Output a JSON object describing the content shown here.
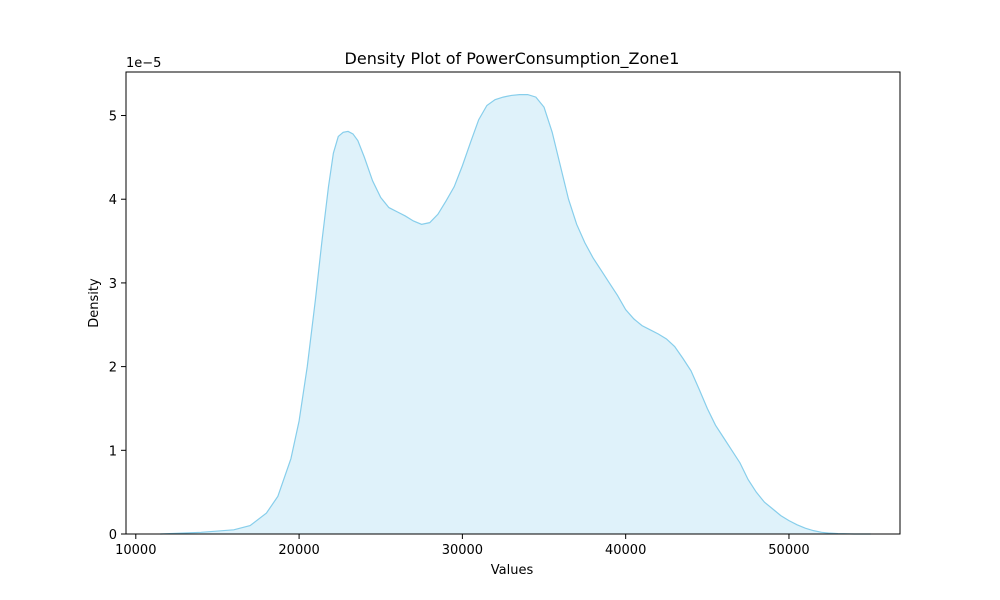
{
  "chart_data": {
    "type": "area",
    "title": "Density Plot of PowerConsumption_Zone1",
    "xlabel": "Values",
    "ylabel": "Density",
    "y_offset_label": "1e−5",
    "y_scale": 1e-05,
    "xlim": [
      9400,
      56800
    ],
    "ylim": [
      0,
      5.52
    ],
    "x_ticks": [
      10000,
      20000,
      30000,
      40000,
      50000
    ],
    "x_tick_labels": [
      "10000",
      "20000",
      "30000",
      "40000",
      "50000"
    ],
    "y_ticks": [
      0,
      1,
      2,
      3,
      4,
      5
    ],
    "y_tick_labels": [
      "0",
      "1",
      "2",
      "3",
      "4",
      "5"
    ],
    "grid": false,
    "legend": "none",
    "series": [
      {
        "color": "#87ceeb",
        "fill_color": "#87ceeb",
        "fill_opacity": 0.27,
        "x": [
          11500,
          14000,
          16000,
          17000,
          18000,
          18700,
          19500,
          20000,
          20500,
          21000,
          21400,
          21800,
          22100,
          22400,
          22700,
          23000,
          23300,
          23600,
          24000,
          24500,
          25000,
          25500,
          26000,
          26500,
          27000,
          27500,
          28000,
          28500,
          29000,
          29500,
          30000,
          30500,
          31000,
          31500,
          32000,
          32500,
          33000,
          33500,
          34000,
          34500,
          35000,
          35500,
          36000,
          36500,
          37000,
          37500,
          38000,
          38500,
          39000,
          39500,
          40000,
          40500,
          41000,
          41500,
          42000,
          42500,
          43000,
          43500,
          44000,
          44500,
          45000,
          45500,
          46000,
          46500,
          47000,
          47500,
          48000,
          48500,
          49000,
          49500,
          50000,
          50500,
          51000,
          51500,
          52000,
          52500,
          53000,
          54000,
          55000
        ],
        "y": [
          0.0,
          0.02,
          0.05,
          0.1,
          0.25,
          0.45,
          0.9,
          1.35,
          2.0,
          2.8,
          3.5,
          4.15,
          4.55,
          4.75,
          4.8,
          4.81,
          4.78,
          4.7,
          4.5,
          4.22,
          4.02,
          3.9,
          3.85,
          3.8,
          3.74,
          3.7,
          3.72,
          3.82,
          3.98,
          4.15,
          4.4,
          4.68,
          4.95,
          5.12,
          5.19,
          5.22,
          5.24,
          5.25,
          5.25,
          5.22,
          5.1,
          4.8,
          4.4,
          4.0,
          3.7,
          3.48,
          3.3,
          3.15,
          3.0,
          2.85,
          2.68,
          2.57,
          2.49,
          2.44,
          2.39,
          2.33,
          2.24,
          2.1,
          1.95,
          1.73,
          1.5,
          1.3,
          1.15,
          1.0,
          0.85,
          0.65,
          0.5,
          0.38,
          0.3,
          0.22,
          0.16,
          0.11,
          0.07,
          0.04,
          0.02,
          0.01,
          0.005,
          0.0,
          0.0
        ]
      }
    ]
  }
}
